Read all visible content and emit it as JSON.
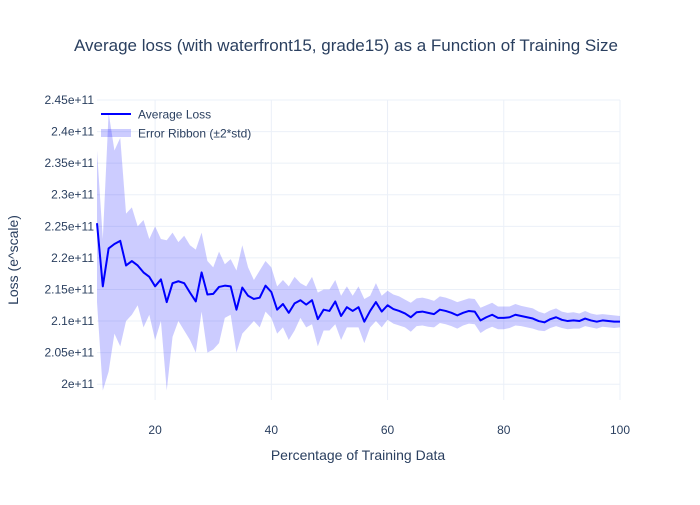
{
  "chart_data": {
    "type": "line",
    "title": "Average loss (with waterfront15, grade15) as a Function of Training Size",
    "xlabel": "Percentage of Training Data",
    "ylabel": "Loss (e^scale)",
    "xlim": [
      10,
      100
    ],
    "ylim": [
      197500000000,
      245000000000
    ],
    "x_ticks": [
      20,
      40,
      60,
      80,
      100
    ],
    "x_tick_labels": [
      "20",
      "40",
      "60",
      "80",
      "100"
    ],
    "y_ticks": [
      200000000000,
      205000000000,
      210000000000,
      215000000000,
      220000000000,
      225000000000,
      230000000000,
      235000000000,
      240000000000,
      245000000000
    ],
    "y_tick_labels": [
      "2e+11",
      "2.05e+11",
      "2.1e+11",
      "2.15e+11",
      "2.2e+11",
      "2.25e+11",
      "2.3e+11",
      "2.35e+11",
      "2.4e+11",
      "2.45e+11"
    ],
    "grid": true,
    "legend_position": "top-left",
    "series": [
      {
        "name": "Average Loss",
        "kind": "line",
        "color": "#0000ff"
      },
      {
        "name": "Error Ribbon (±2*std)",
        "kind": "band",
        "color": "rgba(0,0,255,0.2)"
      }
    ],
    "x": [
      10,
      11,
      12,
      13,
      14,
      15,
      16,
      17,
      18,
      19,
      20,
      21,
      22,
      23,
      24,
      25,
      26,
      27,
      28,
      29,
      30,
      31,
      32,
      33,
      34,
      35,
      36,
      37,
      38,
      39,
      40,
      41,
      42,
      43,
      44,
      45,
      46,
      47,
      48,
      49,
      50,
      51,
      52,
      53,
      54,
      55,
      56,
      57,
      58,
      59,
      60,
      61,
      62,
      63,
      64,
      65,
      66,
      67,
      68,
      69,
      70,
      71,
      72,
      73,
      74,
      75,
      76,
      77,
      78,
      79,
      80,
      81,
      82,
      83,
      84,
      85,
      86,
      87,
      88,
      89,
      90,
      91,
      92,
      93,
      94,
      95,
      96,
      97,
      98,
      99,
      100
    ],
    "average_loss": [
      225500000000,
      215500000000,
      221500000000,
      222200000000,
      222700000000,
      218800000000,
      219500000000,
      218800000000,
      217700000000,
      217000000000,
      215500000000,
      216600000000,
      213000000000,
      216000000000,
      216300000000,
      216000000000,
      214500000000,
      213100000000,
      217700000000,
      214200000000,
      214300000000,
      215400000000,
      215600000000,
      215500000000,
      211800000000,
      215300000000,
      214000000000,
      213500000000,
      213700000000,
      215600000000,
      214600000000,
      211800000000,
      212700000000,
      211300000000,
      212800000000,
      213300000000,
      212600000000,
      213300000000,
      210300000000,
      211800000000,
      211600000000,
      213100000000,
      210800000000,
      212200000000,
      211600000000,
      212200000000,
      209900000000,
      211600000000,
      213000000000,
      211500000000,
      212500000000,
      211900000000,
      211600000000,
      211200000000,
      210600000000,
      211400000000,
      211500000000,
      211300000000,
      211100000000,
      211800000000,
      211600000000,
      211300000000,
      210900000000,
      211300000000,
      211600000000,
      211500000000,
      210100000000,
      210600000000,
      211000000000,
      210500000000,
      210500000000,
      210600000000,
      211000000000,
      210800000000,
      210600000000,
      210400000000,
      210000000000,
      209800000000,
      210300000000,
      210600000000,
      210200000000,
      210000000000,
      210100000000,
      210000000000,
      210400000000,
      210100000000,
      209900000000,
      210100000000,
      210000000000,
      209900000000,
      209900000000
    ],
    "ribbon_upper": [
      237000000000,
      223000000000,
      243000000000,
      237000000000,
      239000000000,
      227000000000,
      228000000000,
      225000000000,
      226000000000,
      223000000000,
      225000000000,
      223000000000,
      222800000000,
      224000000000,
      222500000000,
      223500000000,
      222000000000,
      221300000000,
      224000000000,
      219500000000,
      218500000000,
      221000000000,
      219000000000,
      219800000000,
      218000000000,
      222000000000,
      218500000000,
      216500000000,
      218000000000,
      219500000000,
      218500000000,
      215500000000,
      216500000000,
      215500000000,
      217000000000,
      216000000000,
      215500000000,
      217000000000,
      214500000000,
      215000000000,
      215000000000,
      216500000000,
      214000000000,
      215500000000,
      214000000000,
      215500000000,
      213500000000,
      214000000000,
      216000000000,
      214000000000,
      214800000000,
      214200000000,
      213900000000,
      213400000000,
      212900000000,
      213600000000,
      213700000000,
      213500000000,
      213200000000,
      213900000000,
      213700000000,
      213400000000,
      213000000000,
      213300000000,
      213600000000,
      213500000000,
      212100000000,
      212500000000,
      212900000000,
      212300000000,
      212300000000,
      212300000000,
      212700000000,
      212400000000,
      212200000000,
      212000000000,
      211500000000,
      211200000000,
      211700000000,
      212000000000,
      211500000000,
      211300000000,
      211400000000,
      211200000000,
      211600000000,
      211200000000,
      211000000000,
      211100000000,
      211000000000,
      210900000000,
      210800000000
    ],
    "ribbon_lower": [
      213000000000,
      199000000000,
      202000000000,
      208000000000,
      206000000000,
      210000000000,
      211000000000,
      212500000000,
      209000000000,
      211000000000,
      207000000000,
      210000000000,
      199000000000,
      207500000000,
      210000000000,
      208500000000,
      207000000000,
      205000000000,
      211500000000,
      205000000000,
      205500000000,
      206500000000,
      210500000000,
      211000000000,
      205000000000,
      208000000000,
      209000000000,
      210000000000,
      209000000000,
      211500000000,
      210500000000,
      208000000000,
      209000000000,
      207000000000,
      208500000000,
      210500000000,
      209000000000,
      209500000000,
      206000000000,
      208500000000,
      208500000000,
      209500000000,
      207000000000,
      209000000000,
      209000000000,
      209000000000,
      206500000000,
      209000000000,
      210000000000,
      209000000000,
      210200000000,
      209600000000,
      209300000000,
      209000000000,
      208300000000,
      209200000000,
      209300000000,
      209100000000,
      209000000000,
      209700000000,
      209500000000,
      209200000000,
      208800000000,
      209300000000,
      209600000000,
      209500000000,
      208100000000,
      208700000000,
      209100000000,
      208700000000,
      208700000000,
      208900000000,
      209300000000,
      209200000000,
      209000000000,
      208800000000,
      208500000000,
      208400000000,
      208900000000,
      209200000000,
      208900000000,
      208700000000,
      208800000000,
      208800000000,
      209200000000,
      209000000000,
      208800000000,
      209100000000,
      209000000000,
      208900000000,
      209000000000
    ]
  }
}
